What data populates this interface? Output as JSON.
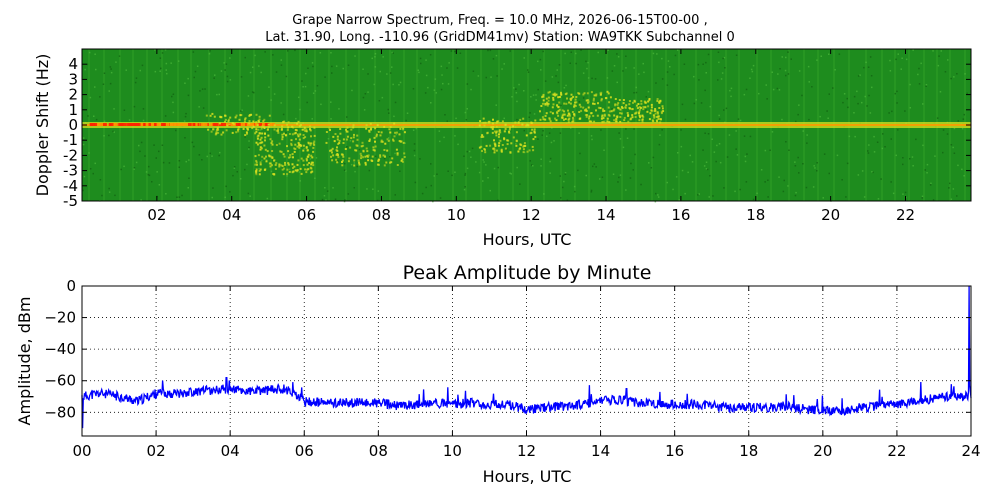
{
  "figure": {
    "title_line1": "Grape Narrow Spectrum, Freq. = 10.0 MHz, 2026-06-15T00-00 ,",
    "title_line2": "Lat.  31.90, Long. -110.96 (GridDM41mv) Station: WA9TKK Subchannel 0"
  },
  "chart_data": [
    {
      "type": "heatmap",
      "title": "",
      "xlabel": "Hours, UTC",
      "ylabel": "Doppler Shift (Hz)",
      "xlim": [
        0,
        23.75
      ],
      "ylim": [
        -5,
        5
      ],
      "x_ticks": [
        "02",
        "04",
        "06",
        "08",
        "10",
        "12",
        "14",
        "16",
        "18",
        "20",
        "22"
      ],
      "x_tick_values": [
        2,
        4,
        6,
        8,
        10,
        12,
        14,
        16,
        18,
        20,
        22
      ],
      "y_ticks": [
        "4",
        "3",
        "2",
        "1",
        "0",
        "-1",
        "-2",
        "-3",
        "-4",
        "-5"
      ],
      "y_tick_values": [
        4,
        3,
        2,
        1,
        0,
        -1,
        -2,
        -3,
        -4,
        -5
      ],
      "colors": {
        "background": "#1e8c1e",
        "noise_light": "#3aa82a",
        "signal_mid": "#d8e020",
        "signal_high": "#ff9900",
        "signal_peak": "#ff2200"
      },
      "carrier_hz": 0
    },
    {
      "type": "line",
      "title": "Peak Amplitude by Minute",
      "xlabel": "Hours, UTC",
      "ylabel": "Amplitude, dBm",
      "xlim": [
        0,
        24
      ],
      "ylim": [
        -95,
        0
      ],
      "grid": true,
      "line_color": "#0000ff",
      "x_ticks": [
        "00",
        "02",
        "04",
        "06",
        "08",
        "10",
        "12",
        "14",
        "16",
        "18",
        "20",
        "22",
        "24"
      ],
      "x_tick_values": [
        0,
        2,
        4,
        6,
        8,
        10,
        12,
        14,
        16,
        18,
        20,
        22,
        24
      ],
      "y_ticks": [
        "0",
        "−20",
        "−40",
        "−60",
        "−80"
      ],
      "y_tick_values": [
        0,
        -20,
        -40,
        -60,
        -80
      ],
      "x": [
        0,
        0.5,
        1,
        1.5,
        2,
        2.5,
        3,
        3.5,
        4,
        4.5,
        5,
        5.5,
        6,
        6.5,
        7,
        7.5,
        8,
        8.5,
        9,
        9.5,
        10,
        10.5,
        11,
        11.5,
        12,
        12.5,
        13,
        13.5,
        14,
        14.5,
        15,
        15.5,
        16,
        16.5,
        17,
        17.5,
        18,
        18.5,
        19,
        19.5,
        20,
        20.5,
        21,
        21.5,
        22,
        22.5,
        23,
        23.5,
        24
      ],
      "values": [
        -70,
        -68,
        -70,
        -73,
        -68,
        -68,
        -67,
        -66,
        -65,
        -67,
        -66,
        -65,
        -73,
        -74,
        -74,
        -74,
        -74,
        -76,
        -75,
        -74,
        -75,
        -74,
        -75,
        -75,
        -78,
        -77,
        -76,
        -75,
        -73,
        -72,
        -74,
        -75,
        -75,
        -75,
        -76,
        -77,
        -77,
        -77,
        -76,
        -78,
        -79,
        -79,
        -77,
        -76,
        -75,
        -73,
        -71,
        -70,
        -69
      ],
      "spikes": [
        {
          "x": 0.02,
          "value": -90
        },
        {
          "x": 3.9,
          "value": -58
        },
        {
          "x": 14.7,
          "value": -65
        },
        {
          "x": 23.95,
          "value": 0
        }
      ]
    }
  ]
}
